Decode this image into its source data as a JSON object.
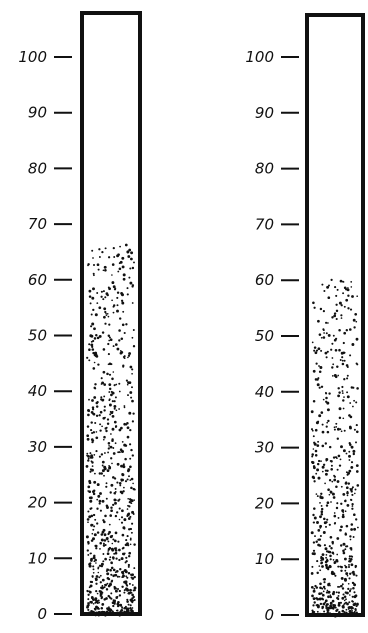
{
  "colors": {
    "ink": "#111111",
    "paper": "#ffffff"
  },
  "scale": {
    "min": 0,
    "max": 100,
    "tick_step": 10
  },
  "tubes": [
    {
      "tick_labels": [
        "0",
        "10",
        "20",
        "30",
        "40",
        "50",
        "60",
        "70",
        "80",
        "90",
        "100"
      ],
      "fill_top_value": 66,
      "dot_density": "denser"
    },
    {
      "tick_labels": [
        "0",
        "10",
        "20",
        "30",
        "40",
        "50",
        "60",
        "70",
        "80",
        "90",
        "100"
      ],
      "fill_top_value": 60,
      "dot_density": "sparser"
    }
  ]
}
